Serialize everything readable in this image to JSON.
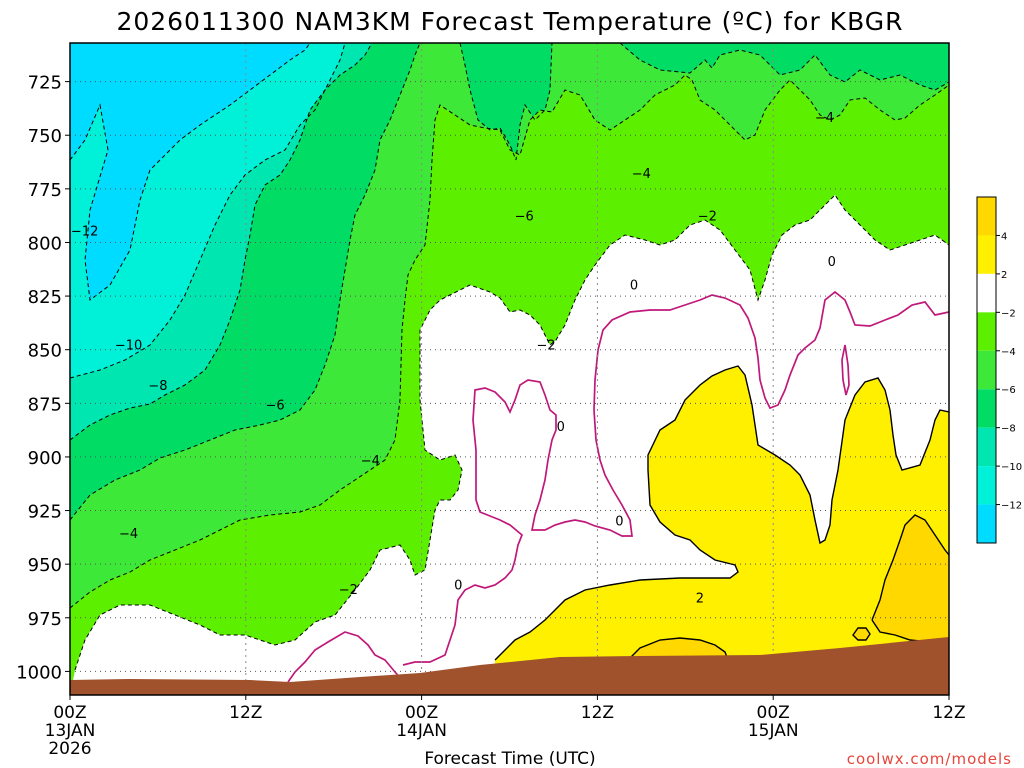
{
  "chart_data": {
    "type": "heatmap",
    "title": "2026011300 NAM3KM Forecast Temperature (ºC) for KBGR",
    "xlabel": "Forecast Time (UTC)",
    "ylabel": "",
    "credit": "coolwx.com/models",
    "y_axis": {
      "ticks": [
        "725",
        "750",
        "775",
        "800",
        "825",
        "850",
        "875",
        "900",
        "925",
        "950",
        "975",
        "1000"
      ],
      "range": [
        1011,
        707
      ],
      "unit": "hPa"
    },
    "x_axis": {
      "ticks": [
        {
          "hour": 0,
          "label": "00Z",
          "date": "13JAN",
          "year": "2026"
        },
        {
          "hour": 12,
          "label": "12Z",
          "date": "",
          "year": ""
        },
        {
          "hour": 24,
          "label": "00Z",
          "date": "14JAN",
          "year": ""
        },
        {
          "hour": 36,
          "label": "12Z",
          "date": "",
          "year": ""
        },
        {
          "hour": 48,
          "label": "00Z",
          "date": "15JAN",
          "year": ""
        },
        {
          "hour": 60,
          "label": "12Z",
          "date": "",
          "year": ""
        }
      ],
      "range": [
        0,
        60
      ],
      "unit": "forecast hour"
    },
    "colorbar": {
      "labels": [
        "4",
        "2",
        "−2",
        "−4",
        "−6",
        "−8",
        "−10",
        "−12"
      ],
      "bands": [
        {
          "from": 2,
          "to": 4,
          "color": "#fff000"
        },
        {
          "from": 4,
          "to": 6,
          "color": "#ffd800"
        },
        {
          "from": -2,
          "to": 2,
          "color": "#ffffff"
        },
        {
          "from": -4,
          "to": -2,
          "color": "#5cf000"
        },
        {
          "from": -6,
          "to": -4,
          "color": "#3ee838"
        },
        {
          "from": -8,
          "to": -6,
          "color": "#00dc64"
        },
        {
          "from": -10,
          "to": -8,
          "color": "#00e6b0"
        },
        {
          "from": -12,
          "to": -10,
          "color": "#00f0d8"
        },
        {
          "from": -14,
          "to": -12,
          "color": "#00dcff"
        }
      ]
    },
    "contour_labels": [
      {
        "text": "−12",
        "hour": 1.0,
        "hPa": 795
      },
      {
        "text": "−10",
        "hour": 4.0,
        "hPa": 848
      },
      {
        "text": "−8",
        "hour": 6.0,
        "hPa": 867
      },
      {
        "text": "−6",
        "hour": 14.0,
        "hPa": 876
      },
      {
        "text": "−4",
        "hour": 20.5,
        "hPa": 902
      },
      {
        "text": "−4",
        "hour": 4.0,
        "hPa": 936
      },
      {
        "text": "−2",
        "hour": 19.0,
        "hPa": 962
      },
      {
        "text": "−6",
        "hour": 31.0,
        "hPa": 788
      },
      {
        "text": "−4",
        "hour": 39.0,
        "hPa": 768
      },
      {
        "text": "−4",
        "hour": 51.5,
        "hPa": 742
      },
      {
        "text": "−2",
        "hour": 32.5,
        "hPa": 848
      },
      {
        "text": "−2",
        "hour": 43.5,
        "hPa": 788
      },
      {
        "text": "0",
        "hour": 38.5,
        "hPa": 820
      },
      {
        "text": "0",
        "hour": 52.0,
        "hPa": 809
      },
      {
        "text": "0",
        "hour": 33.5,
        "hPa": 886
      },
      {
        "text": "0",
        "hour": 37.5,
        "hPa": 930
      },
      {
        "text": "0",
        "hour": 26.5,
        "hPa": 960
      },
      {
        "text": "2",
        "hour": 43.0,
        "hPa": 966
      }
    ],
    "surface": {
      "color": "#a0522d"
    }
  }
}
